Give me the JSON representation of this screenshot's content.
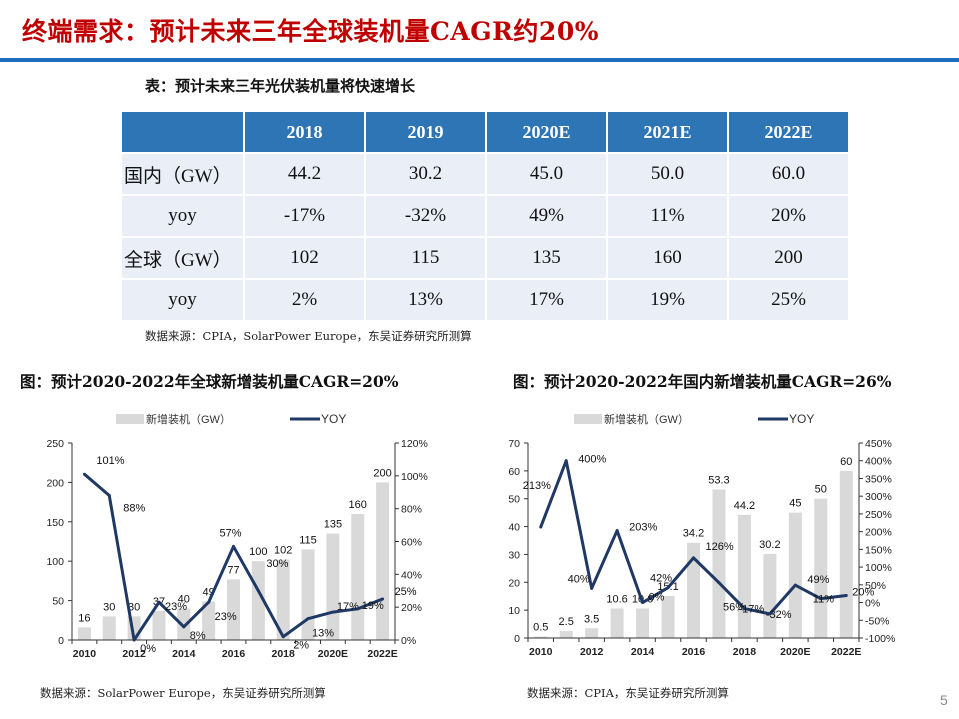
{
  "header": {
    "title": "终端需求：预计未来三年全球装机量CAGR约20%"
  },
  "table": {
    "caption": "表：预计未来三年光伏装机量将快速增长",
    "columns": [
      "",
      "2018",
      "2019",
      "2020E",
      "2021E",
      "2022E"
    ],
    "rows": [
      {
        "label": "国内（GW）",
        "values": [
          "44.2",
          "30.2",
          "45.0",
          "50.0",
          "60.0"
        ]
      },
      {
        "label": "yoy",
        "values": [
          "-17%",
          "-32%",
          "49%",
          "11%",
          "20%"
        ]
      },
      {
        "label": "全球（GW）",
        "values": [
          "102",
          "115",
          "135",
          "160",
          "200"
        ]
      },
      {
        "label": "yoy",
        "values": [
          "2%",
          "13%",
          "17%",
          "19%",
          "25%"
        ]
      }
    ],
    "source": "数据来源：CPIA，SolarPower Europe，东吴证券研究所测算"
  },
  "colors": {
    "title": "#c00000",
    "rule": "#1f6fbf",
    "table_header": "#2e75b6",
    "table_cell": "#e9eef7",
    "bar": "#d9d9d9",
    "line": "#1f3864"
  },
  "chart_data": [
    {
      "type": "bar+line",
      "title": "图：预计2020-2022年全球新增装机量CAGR=20%",
      "source": "数据来源：SolarPower Europe，东吴证券研究所测算",
      "legend": {
        "bar": "新增装机（GW）",
        "line": "YOY",
        "placement": "top"
      },
      "categories": [
        "2010",
        "2011",
        "2012",
        "2013",
        "2014",
        "2015",
        "2016",
        "2017",
        "2018",
        "2019",
        "2020E",
        "2021E",
        "2022E"
      ],
      "x_tick_labels": [
        "2010",
        "2012",
        "2014",
        "2016",
        "2018",
        "2020E",
        "2022E"
      ],
      "series": [
        {
          "name": "新增装机（GW）",
          "type": "bar",
          "axis": "left",
          "values": [
            16,
            30,
            30,
            37,
            40,
            49,
            77,
            100,
            102,
            115,
            135,
            160,
            200
          ]
        },
        {
          "name": "YOY",
          "type": "line",
          "axis": "right",
          "values": [
            101,
            88,
            0,
            23,
            8,
            23,
            57,
            30,
            2,
            13,
            17,
            19,
            25
          ]
        }
      ],
      "ylim_left": [
        0,
        250
      ],
      "yticks_left": [
        0,
        50,
        100,
        150,
        200,
        250
      ],
      "ylim_right": [
        0,
        120
      ],
      "yticks_right": [
        0,
        20,
        40,
        60,
        80,
        100,
        120
      ],
      "right_unit": "%",
      "grid": false
    },
    {
      "type": "bar+line",
      "title": "图：预计2020-2022年国内新增装机量CAGR=26%",
      "source": "数据来源：CPIA，东吴证券研究所测算",
      "legend": {
        "bar": "新增装机（GW）",
        "line": "YOY",
        "placement": "top"
      },
      "categories": [
        "2010",
        "2011",
        "2012",
        "2013",
        "2014",
        "2015",
        "2016",
        "2017",
        "2018",
        "2019",
        "2020E",
        "2021E",
        "2022E"
      ],
      "x_tick_labels": [
        "2010",
        "2012",
        "2014",
        "2016",
        "2018",
        "2020E",
        "2022E"
      ],
      "series": [
        {
          "name": "新增装机（GW）",
          "type": "bar",
          "axis": "left",
          "values": [
            0.5,
            2.5,
            3.5,
            10.6,
            10.6,
            15.1,
            34.2,
            53.3,
            44.2,
            30.2,
            45,
            50,
            60
          ]
        },
        {
          "name": "YOY",
          "type": "line",
          "axis": "right",
          "values": [
            213,
            400,
            40,
            203,
            0,
            42,
            126,
            56,
            -17,
            -32,
            49,
            11,
            20
          ]
        }
      ],
      "ylim_left": [
        0,
        70
      ],
      "yticks_left": [
        0,
        10,
        20,
        30,
        40,
        50,
        60,
        70
      ],
      "ylim_right": [
        -100,
        450
      ],
      "yticks_right": [
        -100,
        -50,
        0,
        50,
        100,
        150,
        200,
        250,
        300,
        350,
        400,
        450
      ],
      "right_unit": "%",
      "grid": false
    }
  ],
  "page_number": "5"
}
